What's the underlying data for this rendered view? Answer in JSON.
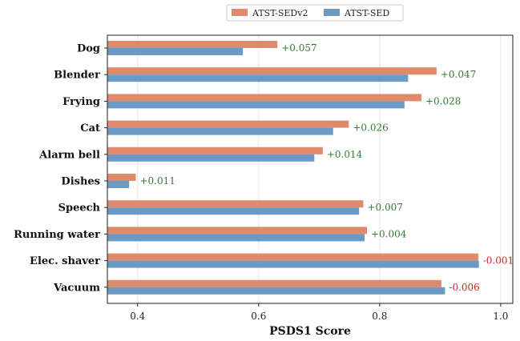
{
  "chart_data": {
    "type": "bar",
    "orientation": "horizontal",
    "categories": [
      "Dog",
      "Blender",
      "Frying",
      "Cat",
      "Alarm bell",
      "Dishes",
      "Speech",
      "Running water",
      "Elec. shaver",
      "Vacuum"
    ],
    "series": [
      {
        "name": "ATST-SEDv2",
        "color": "#e08a6c",
        "values": [
          0.631,
          0.894,
          0.869,
          0.749,
          0.706,
          0.397,
          0.773,
          0.779,
          0.963,
          0.902
        ]
      },
      {
        "name": "ATST-SED",
        "color": "#6b9ac4",
        "values": [
          0.574,
          0.847,
          0.841,
          0.723,
          0.692,
          0.386,
          0.766,
          0.775,
          0.964,
          0.908
        ]
      }
    ],
    "deltas": [
      "+0.057",
      "+0.047",
      "+0.028",
      "+0.026",
      "+0.014",
      "+0.011",
      "+0.007",
      "+0.004",
      "-0.001",
      "-0.006"
    ],
    "delta_colors": {
      "positive": "#2e7d32",
      "negative": "#c62828"
    },
    "xlabel": "PSDS1 Score",
    "ylabel": "",
    "xlim": [
      0.35,
      1.02
    ],
    "xticks": [
      "0.4",
      "0.6",
      "0.8",
      "1.0"
    ],
    "grid": true,
    "legend_position": "top-center"
  }
}
